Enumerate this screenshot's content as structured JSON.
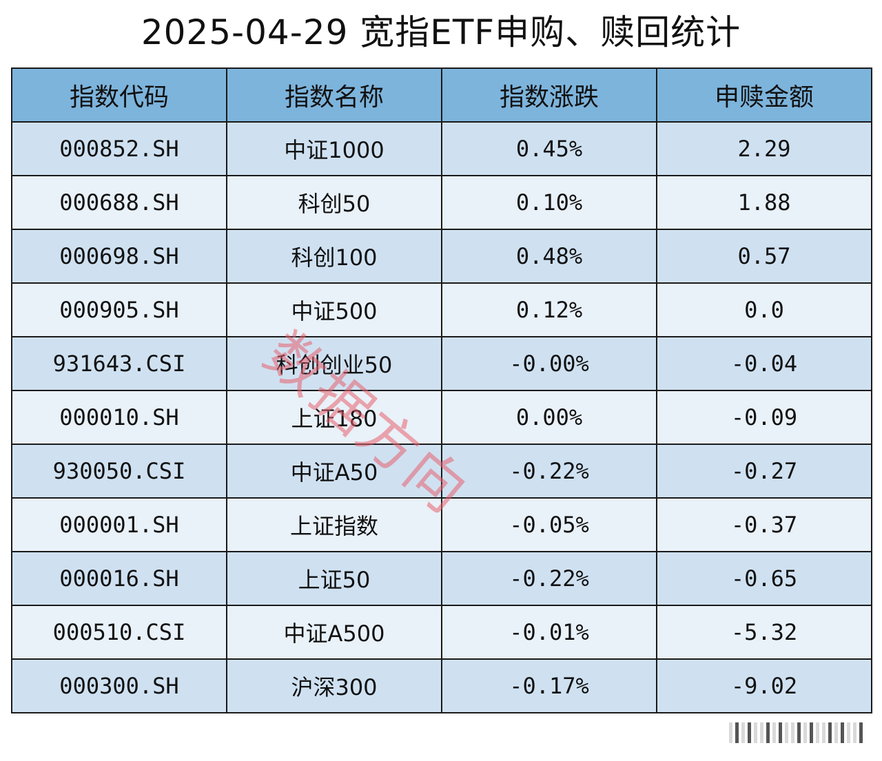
{
  "title": "2025-04-29 宽指ETF申购、赎回统计",
  "table": {
    "headers": [
      "指数代码",
      "指数名称",
      "指数涨跌",
      "申赎金额"
    ],
    "rows": [
      {
        "code": "000852.SH",
        "name": "中证1000",
        "change": "0.45%",
        "amount": "2.29"
      },
      {
        "code": "000688.SH",
        "name": "科创50",
        "change": "0.10%",
        "amount": "1.88"
      },
      {
        "code": "000698.SH",
        "name": "科创100",
        "change": "0.48%",
        "amount": "0.57"
      },
      {
        "code": "000905.SH",
        "name": "中证500",
        "change": "0.12%",
        "amount": "0.0"
      },
      {
        "code": "931643.CSI",
        "name": "科创创业50",
        "change": "-0.00%",
        "amount": "-0.04"
      },
      {
        "code": "000010.SH",
        "name": "上证180",
        "change": "0.00%",
        "amount": "-0.09"
      },
      {
        "code": "930050.CSI",
        "name": "中证A50",
        "change": "-0.22%",
        "amount": "-0.27"
      },
      {
        "code": "000001.SH",
        "name": "上证指数",
        "change": "-0.05%",
        "amount": "-0.37"
      },
      {
        "code": "000016.SH",
        "name": "上证50",
        "change": "-0.22%",
        "amount": "-0.65"
      },
      {
        "code": "000510.CSI",
        "name": "中证A500",
        "change": "-0.01%",
        "amount": "-5.32"
      },
      {
        "code": "000300.SH",
        "name": "沪深300",
        "change": "-0.17%",
        "amount": "-9.02"
      }
    ]
  },
  "watermark": "数据方向",
  "colors": {
    "header_bg": "#7db4dc",
    "row_odd_bg": "#cfe1f1",
    "row_even_bg": "#e9f1f9",
    "watermark": "#e8606e"
  }
}
